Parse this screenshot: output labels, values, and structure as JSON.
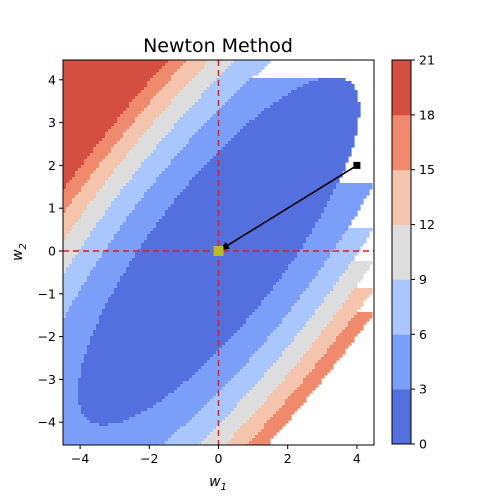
{
  "chart_data": {
    "type": "contour",
    "title": "Newton Method",
    "xlabel": "w",
    "xlabel_sub": "1",
    "ylabel": "w",
    "ylabel_sub": "2",
    "xlim": [
      -4.5,
      4.5
    ],
    "ylim": [
      -4.5,
      4.5
    ],
    "xticks": [
      -4,
      -2,
      0,
      2,
      4
    ],
    "yticks": [
      -4,
      -3,
      -2,
      -1,
      0,
      1,
      2,
      3,
      4
    ],
    "xtick_labels": [
      "−4",
      "−2",
      "0",
      "2",
      "4"
    ],
    "ytick_labels": [
      "−4",
      "−3",
      "−2",
      "−1",
      "0",
      "1",
      "2",
      "3",
      "4"
    ],
    "colorbar": {
      "levels": [
        0,
        3,
        6,
        9,
        12,
        15,
        18,
        21
      ],
      "labels": [
        "0",
        "3",
        "6",
        "9",
        "12",
        "15",
        "18",
        "21"
      ],
      "colors": [
        "#5470de",
        "#7b9ff9",
        "#aac7fd",
        "#dddddd",
        "#f5c4ad",
        "#f08a6c",
        "#d44e41"
      ]
    },
    "function": "f(w) = 0.5*(w1 - w2)^2 + 0.05*(w1 + w2)^2",
    "path": [
      [
        4,
        2
      ],
      [
        0,
        0
      ]
    ],
    "start_point": [
      4,
      2
    ],
    "optimum": [
      0,
      0
    ],
    "reference_lines": {
      "x": 0,
      "y": 0,
      "color": "#e41a1c",
      "style": "dashed"
    },
    "optimum_color": "#bcbd22"
  }
}
